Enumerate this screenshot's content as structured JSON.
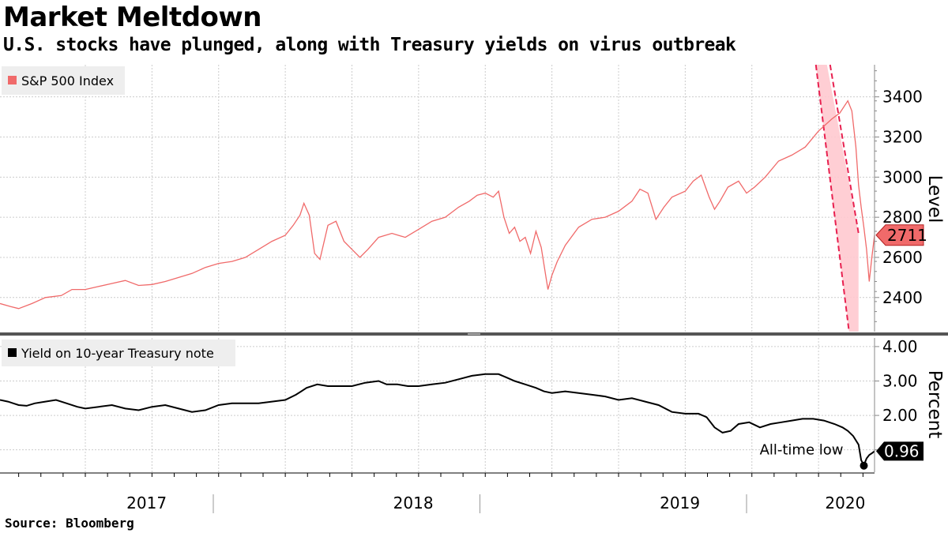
{
  "title": "Market Meltdown",
  "subtitle": "U.S. stocks have plunged, along with Treasury yields on virus outbreak",
  "source": "Source: Bloomberg",
  "colors": {
    "sp500": "#f06a6a",
    "band_fill": "#ffc9cf",
    "band_edge": "#e8204f",
    "yield": "#000000",
    "grid": "#cccccc"
  },
  "chart_data": [
    {
      "type": "line",
      "legend": "S&P 500 Index",
      "ylabel": "Level",
      "ylim": [
        2230,
        3560
      ],
      "yticks": [
        2400,
        2600,
        2800,
        3000,
        3200,
        3400
      ],
      "xlim": [
        2016.93,
        2020.21
      ],
      "last_value_label": "2711",
      "last_value": 2711,
      "series": [
        {
          "name": "S&P 500 Index",
          "x": [
            2016.93,
            2016.97,
            2017.0,
            2017.05,
            2017.1,
            2017.16,
            2017.2,
            2017.25,
            2017.3,
            2017.35,
            2017.4,
            2017.45,
            2017.5,
            2017.55,
            2017.6,
            2017.65,
            2017.7,
            2017.75,
            2017.8,
            2017.85,
            2017.9,
            2017.95,
            2018.0,
            2018.03,
            2018.055,
            2018.07,
            2018.09,
            2018.11,
            2018.13,
            2018.16,
            2018.19,
            2018.22,
            2018.25,
            2018.28,
            2018.31,
            2018.35,
            2018.4,
            2018.45,
            2018.5,
            2018.55,
            2018.6,
            2018.65,
            2018.69,
            2018.72,
            2018.75,
            2018.78,
            2018.8,
            2018.82,
            2018.84,
            2018.86,
            2018.88,
            2018.9,
            2018.92,
            2018.94,
            2018.96,
            2018.985,
            2019.0,
            2019.02,
            2019.05,
            2019.1,
            2019.15,
            2019.2,
            2019.25,
            2019.3,
            2019.33,
            2019.36,
            2019.39,
            2019.42,
            2019.45,
            2019.5,
            2019.53,
            2019.56,
            2019.59,
            2019.61,
            2019.63,
            2019.66,
            2019.7,
            2019.73,
            2019.76,
            2019.8,
            2019.85,
            2019.9,
            2019.95,
            2020.0,
            2020.05,
            2020.08,
            2020.11,
            2020.125,
            2020.14,
            2020.15,
            2020.16,
            2020.17,
            2020.18,
            2020.19,
            2020.2,
            2020.21
          ],
          "values": [
            2370,
            2355,
            2345,
            2370,
            2400,
            2410,
            2440,
            2440,
            2455,
            2470,
            2485,
            2460,
            2465,
            2480,
            2500,
            2520,
            2550,
            2570,
            2580,
            2600,
            2640,
            2680,
            2710,
            2760,
            2810,
            2870,
            2810,
            2620,
            2590,
            2760,
            2780,
            2680,
            2640,
            2600,
            2640,
            2700,
            2720,
            2700,
            2740,
            2780,
            2800,
            2850,
            2880,
            2910,
            2920,
            2900,
            2930,
            2800,
            2720,
            2750,
            2680,
            2700,
            2620,
            2730,
            2650,
            2440,
            2510,
            2580,
            2660,
            2750,
            2790,
            2800,
            2830,
            2880,
            2940,
            2920,
            2790,
            2850,
            2900,
            2930,
            2980,
            3010,
            2900,
            2840,
            2880,
            2950,
            2980,
            2920,
            2950,
            3000,
            3080,
            3110,
            3150,
            3230,
            3290,
            3320,
            3380,
            3330,
            3150,
            2960,
            2850,
            2750,
            2640,
            2480,
            2600,
            2711
          ]
        }
      ],
      "annotations": [
        {
          "type": "trend-channel",
          "x": [
            2019.99,
            2020.15
          ],
          "upper": [
            3620,
            2720
          ],
          "lower": [
            3560,
            2230
          ]
        }
      ]
    },
    {
      "type": "line",
      "legend": "Yield on 10-year Treasury note",
      "ylabel": "Percent",
      "ylim": [
        0.35,
        4.25
      ],
      "yticks": [
        2.0,
        3.0,
        4.0
      ],
      "ytick_labels": [
        "2.00",
        "3.00",
        "4.00"
      ],
      "xlim": [
        2016.93,
        2020.21
      ],
      "last_value_label": "0.96",
      "last_value": 0.96,
      "annotation_label": "All-time low",
      "series": [
        {
          "name": "Yield on 10-year Treasury note",
          "x": [
            2016.93,
            2016.96,
            2016.98,
            2017.0,
            2017.03,
            2017.06,
            2017.1,
            2017.14,
            2017.18,
            2017.22,
            2017.25,
            2017.3,
            2017.35,
            2017.4,
            2017.45,
            2017.5,
            2017.55,
            2017.6,
            2017.65,
            2017.7,
            2017.75,
            2017.8,
            2017.85,
            2017.9,
            2017.95,
            2018.0,
            2018.04,
            2018.08,
            2018.12,
            2018.16,
            2018.2,
            2018.25,
            2018.3,
            2018.35,
            2018.38,
            2018.42,
            2018.46,
            2018.5,
            2018.55,
            2018.6,
            2018.65,
            2018.7,
            2018.75,
            2018.8,
            2018.83,
            2018.86,
            2018.9,
            2018.94,
            2018.97,
            2019.0,
            2019.05,
            2019.1,
            2019.15,
            2019.2,
            2019.25,
            2019.3,
            2019.35,
            2019.4,
            2019.45,
            2019.5,
            2019.55,
            2019.58,
            2019.61,
            2019.64,
            2019.67,
            2019.7,
            2019.74,
            2019.78,
            2019.82,
            2019.86,
            2019.9,
            2019.94,
            2019.98,
            2020.02,
            2020.06,
            2020.09,
            2020.11,
            2020.13,
            2020.15,
            2020.16,
            2020.17,
            2020.18,
            2020.19,
            2020.2,
            2020.21
          ],
          "values": [
            2.45,
            2.4,
            2.35,
            2.3,
            2.28,
            2.35,
            2.4,
            2.45,
            2.35,
            2.25,
            2.2,
            2.25,
            2.3,
            2.2,
            2.15,
            2.25,
            2.3,
            2.2,
            2.1,
            2.15,
            2.3,
            2.35,
            2.35,
            2.35,
            2.4,
            2.45,
            2.6,
            2.8,
            2.9,
            2.85,
            2.85,
            2.85,
            2.95,
            3.0,
            2.9,
            2.9,
            2.85,
            2.85,
            2.9,
            2.95,
            3.05,
            3.15,
            3.2,
            3.2,
            3.1,
            3.0,
            2.9,
            2.8,
            2.7,
            2.65,
            2.7,
            2.65,
            2.6,
            2.55,
            2.45,
            2.5,
            2.4,
            2.3,
            2.1,
            2.05,
            2.05,
            1.95,
            1.65,
            1.5,
            1.55,
            1.75,
            1.8,
            1.65,
            1.75,
            1.8,
            1.85,
            1.9,
            1.9,
            1.85,
            1.75,
            1.65,
            1.55,
            1.4,
            1.15,
            0.7,
            0.55,
            0.75,
            0.85,
            0.9,
            0.96
          ]
        }
      ],
      "low_point": {
        "x": 2020.17,
        "value": 0.54
      }
    }
  ],
  "x_axis": {
    "labels": [
      "2017",
      "2018",
      "2019",
      "2020"
    ],
    "label_centers": [
      2017.48,
      2018.48,
      2019.48,
      2020.1
    ],
    "separators": [
      2017.73,
      2018.73,
      2019.73
    ]
  }
}
